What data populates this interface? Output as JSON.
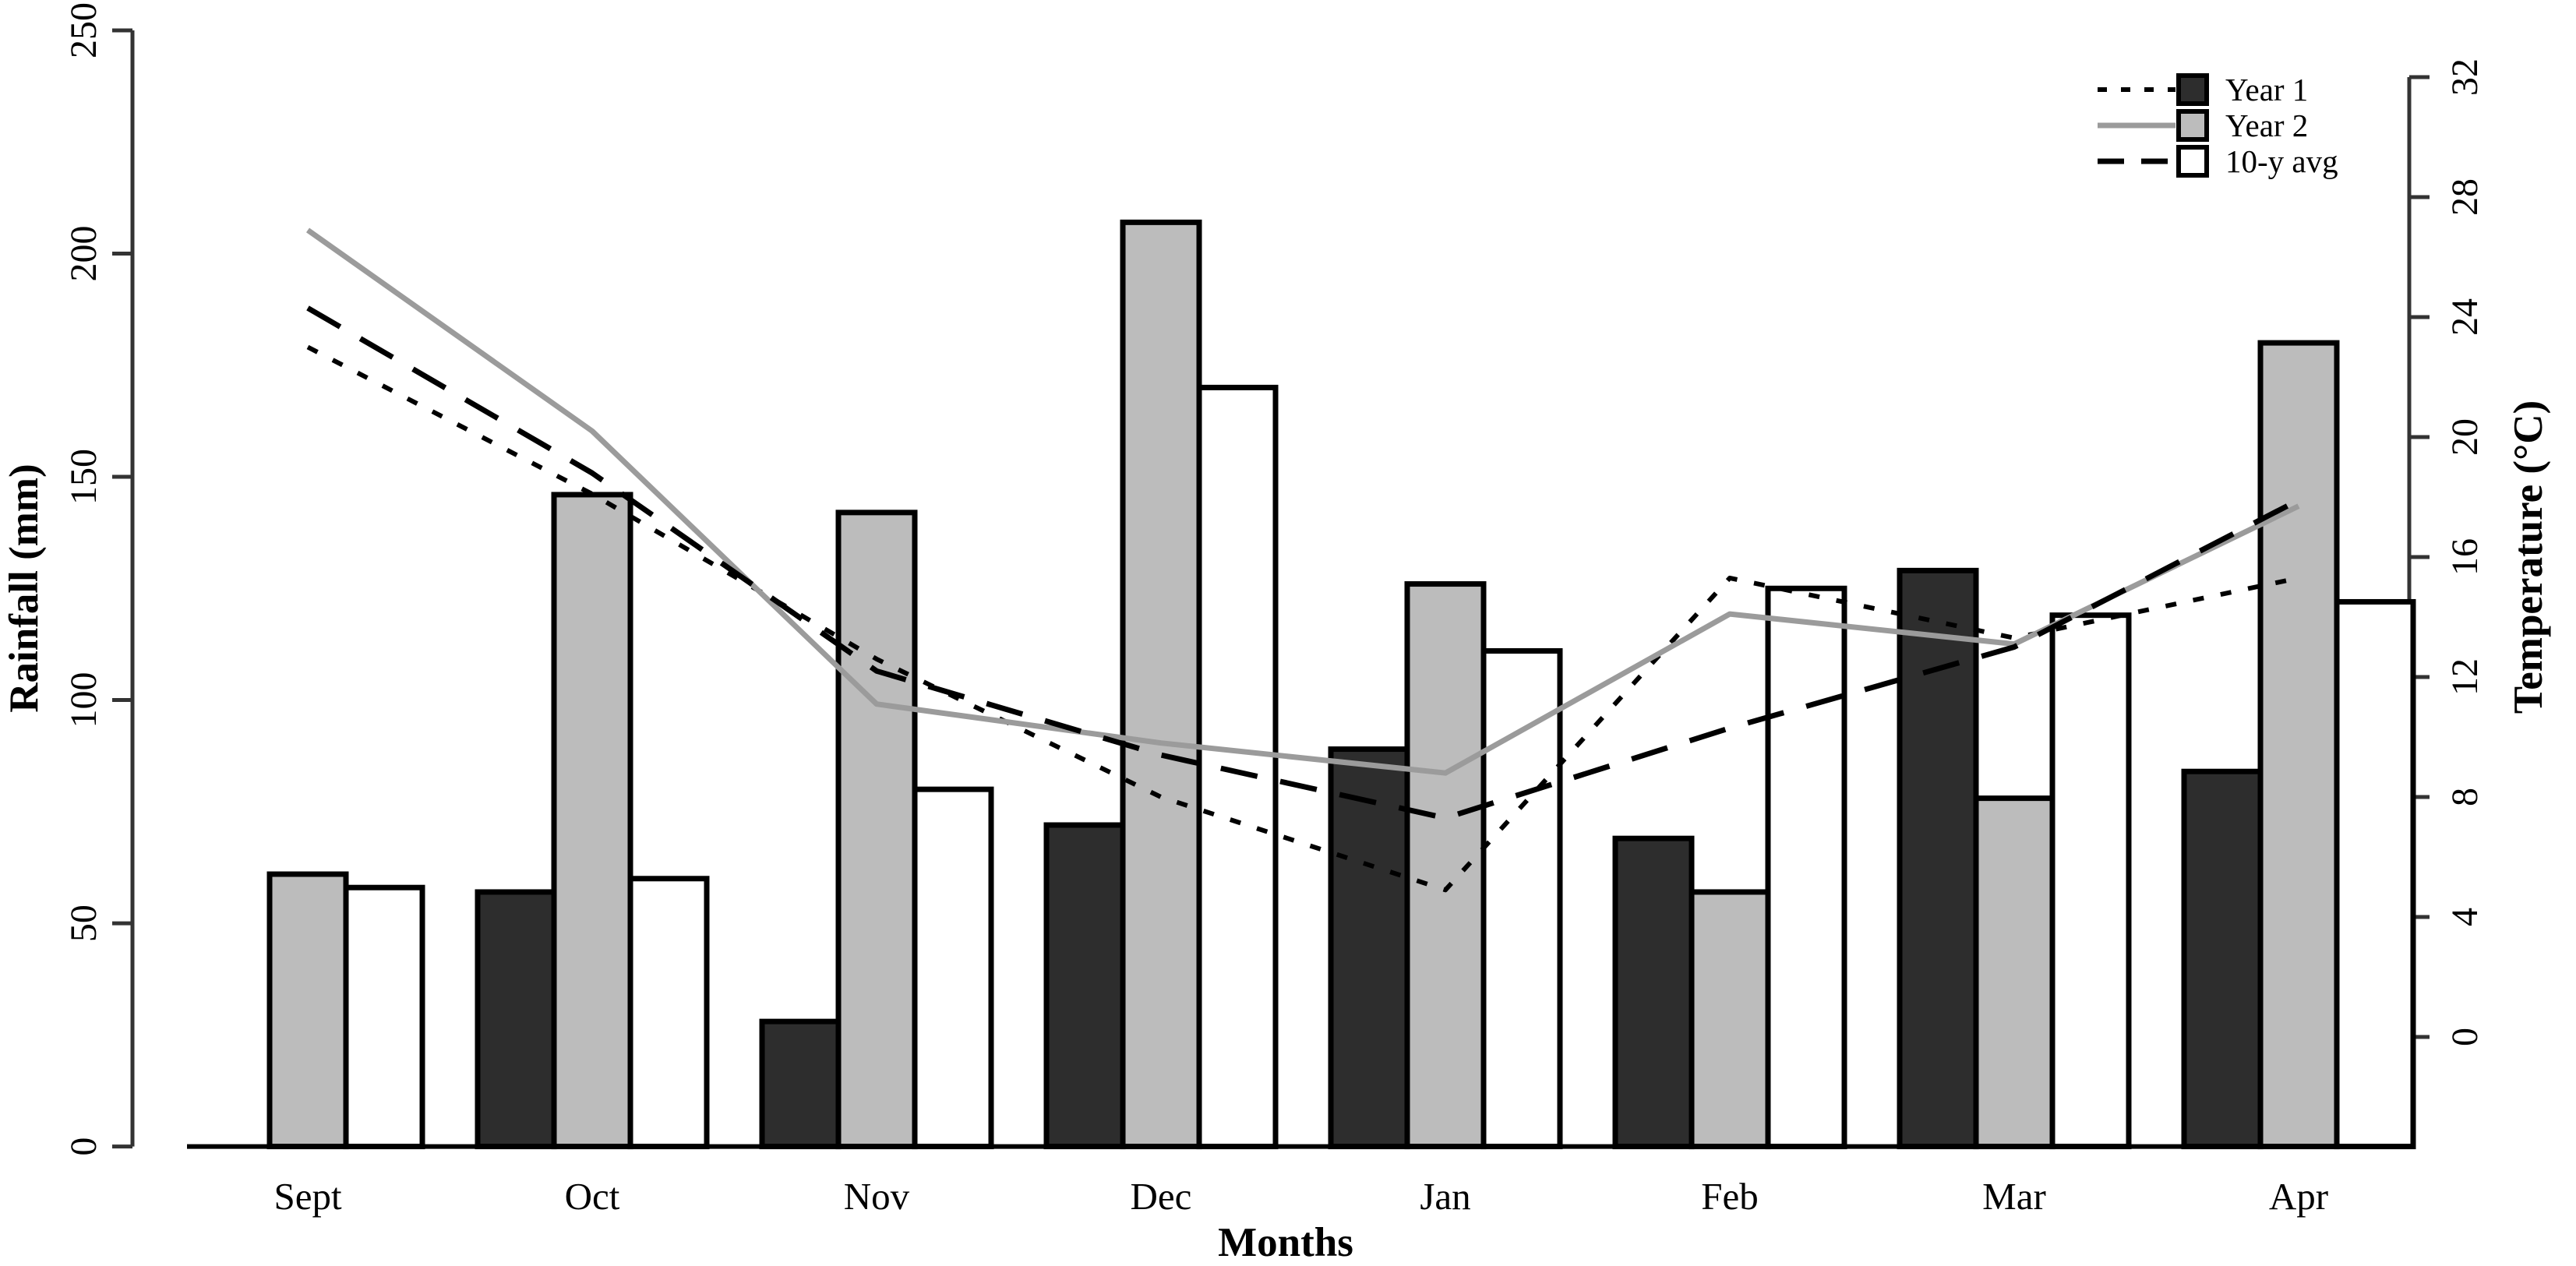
{
  "chart_data": {
    "type": "bar",
    "title": "",
    "categories": [
      "Sept",
      "Oct",
      "Nov",
      "Dec",
      "Jan",
      "Feb",
      "Mar",
      "Apr"
    ],
    "xlabel": "Months",
    "ylabel_left": "Rainfall (mm)",
    "ylabel_right": "Temperature (°C)",
    "ylim_left": [
      0,
      250
    ],
    "yticks_left": [
      0,
      50,
      100,
      150,
      200,
      250
    ],
    "ylim_right": [
      0,
      32
    ],
    "yticks_right": [
      0,
      4,
      8,
      12,
      16,
      20,
      24,
      28,
      32
    ],
    "grid": false,
    "legend_position": "top-right-inside",
    "bar_series": [
      {
        "name": "Year 1",
        "axis": "rainfall_mm",
        "values": [
          0,
          57,
          28,
          72,
          89,
          69,
          129,
          84
        ]
      },
      {
        "name": "Year 2",
        "axis": "rainfall_mm",
        "values": [
          61,
          146,
          142,
          207,
          126,
          57,
          78,
          180
        ]
      },
      {
        "name": "10-y avg",
        "axis": "rainfall_mm",
        "values": [
          58,
          60,
          80,
          170,
          111,
          125,
          119,
          122
        ]
      }
    ],
    "line_series": [
      {
        "name": "Year 1",
        "axis": "temperature_c",
        "style": "dotted",
        "values": [
          23.0,
          18.1,
          12.6,
          8.0,
          4.9,
          15.3,
          13.3,
          15.3
        ]
      },
      {
        "name": "Year 2",
        "axis": "temperature_c",
        "style": "solid",
        "values": [
          26.9,
          20.2,
          11.1,
          9.8,
          8.8,
          14.1,
          13.1,
          17.7
        ]
      },
      {
        "name": "10-y avg",
        "axis": "temperature_c",
        "style": "dashed",
        "values": [
          24.3,
          18.8,
          12.2,
          9.4,
          7.3,
          10.3,
          13.0,
          17.9
        ]
      }
    ],
    "legend": {
      "entries": [
        {
          "label": "Year 1",
          "line_style": "dotted",
          "marker": "dark-filled-square"
        },
        {
          "label": "Year 2",
          "line_style": "solid",
          "marker": "gray-filled-square"
        },
        {
          "label": "10-y avg",
          "line_style": "dashed",
          "marker": "white-open-square"
        }
      ]
    },
    "colors": {
      "bar_year1_fill": "#2d2d2d",
      "bar_year2_fill": "#bcbcbc",
      "bar_avg_fill": "#ffffff",
      "bar_stroke": "#000000",
      "line_year1": "#000000",
      "line_year2": "#9b9b9b",
      "line_avg": "#000000",
      "axis": "#333333",
      "background": "#ffffff"
    }
  }
}
